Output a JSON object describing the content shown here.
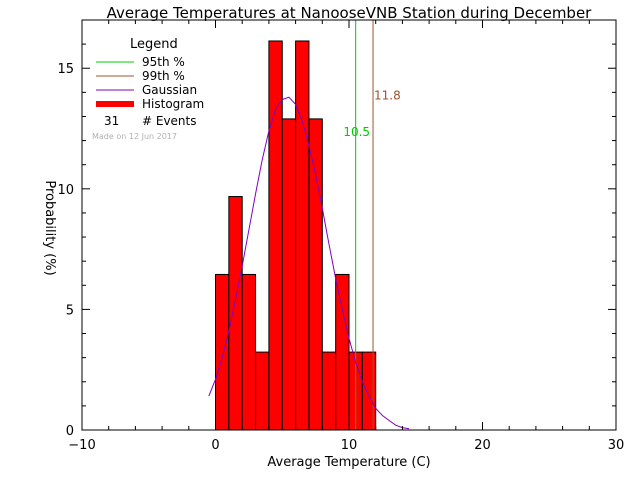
{
  "chart_data": {
    "type": "bar",
    "title": "Average Temperatures at NanooseVNB Station during December",
    "xlabel": "Average Temperature (C)",
    "ylabel": "Probability (%)",
    "xlim": [
      -10,
      30
    ],
    "ylim": [
      0,
      17
    ],
    "x_ticks": [
      -10,
      0,
      10,
      20,
      30
    ],
    "y_ticks": [
      0,
      5,
      10,
      15
    ],
    "grid": false,
    "legend_placement": "top-left",
    "legend": {
      "title": "Legend",
      "entries": [
        {
          "name": "95th %",
          "color": "#00cc00",
          "style": "line"
        },
        {
          "name": "99th %",
          "color": "#a0522d",
          "style": "line"
        },
        {
          "name": "Gaussian",
          "color": "#8000c0",
          "style": "line"
        },
        {
          "name": "Histogram",
          "color": "#ff0000",
          "style": "thick"
        }
      ],
      "events_count": "31",
      "events_label": "# Events",
      "made_on": "Made on 12 Jun 2017"
    },
    "histogram": {
      "bin_width": 1,
      "bin_starts": [
        0,
        1,
        2,
        3,
        4,
        5,
        6,
        7,
        8,
        9,
        10,
        11
      ],
      "values": [
        6.45,
        9.68,
        6.45,
        3.23,
        16.13,
        12.9,
        16.13,
        12.9,
        3.23,
        6.45,
        3.23,
        3.23
      ],
      "color": "#ff0000"
    },
    "gaussian": {
      "color": "#8000c0",
      "x": [
        -0.5,
        0,
        0.5,
        1,
        1.5,
        2,
        2.5,
        3,
        3.5,
        4,
        4.5,
        5,
        5.5,
        6,
        6.5,
        7,
        7.5,
        8,
        8.5,
        9,
        9.5,
        10,
        10.5,
        11,
        11.5,
        12,
        12.5,
        13,
        13.5,
        14,
        14.5
      ],
      "y": [
        1.4,
        2.1,
        3.0,
        4.1,
        5.4,
        6.8,
        8.3,
        9.8,
        11.2,
        12.4,
        13.3,
        13.7,
        13.8,
        13.5,
        12.8,
        11.8,
        10.6,
        9.2,
        7.7,
        6.3,
        5.0,
        3.8,
        2.8,
        2.0,
        1.4,
        0.9,
        0.6,
        0.4,
        0.2,
        0.1,
        0.05
      ]
    },
    "percentiles": [
      {
        "name": "95th %",
        "x": 10.5,
        "label": "10.5",
        "label_y": 12.2,
        "color": "#00cc00"
      },
      {
        "name": "99th %",
        "x": 11.8,
        "label": "11.8",
        "label_y": 13.7,
        "color": "#a0522d"
      }
    ]
  }
}
